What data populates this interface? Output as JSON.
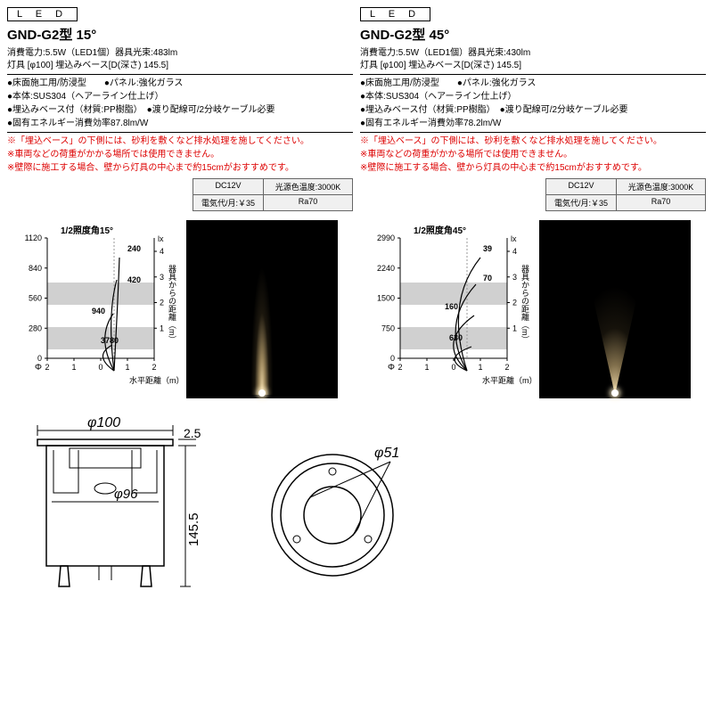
{
  "led_tag": "L E D",
  "left": {
    "model": "GND-G2型 15°",
    "spec1": "消費電力:5.5W（LED1個）器具光束:483lm",
    "spec2": "灯具 [φ100] 埋込みベース[D(深さ) 145.5]",
    "bullets": [
      "●床面施工用/防浸型　　●パネル:強化ガラス",
      "●本体:SUS304（ヘアーライン仕上げ）",
      "●埋込みベース付（材質:PP樹脂）　●渡り配線可/2分岐ケーブル必要",
      "●固有エネルギー消費効率87.8lm/W"
    ],
    "warn": [
      "※「埋込ベース」の下側には、砂利を敷くなど排水処理を施してください。",
      "※車両などの荷重がかかる場所では使用できません。",
      "※壁際に施工する場合、壁から灯具の中心まで約15cmがおすすめです。"
    ],
    "box1": "DC12V",
    "box2": "光源色温度:3000K",
    "box3": "電気代/月:￥35",
    "box4": "Ra70",
    "chart": {
      "title": "1/2照度角15°",
      "y_ticks": [
        "1120",
        "840",
        "560",
        "280",
        "0"
      ],
      "x_ticks": [
        "2",
        "1",
        "0",
        "1",
        "2"
      ],
      "right_ticks": [
        "4",
        "3",
        "2",
        "1"
      ],
      "x_label": "水平距離（m）",
      "right_label": "器具からの距離（m）",
      "lx": "lx",
      "vals": [
        "240",
        "420",
        "940",
        "3780"
      ],
      "bands": [
        [
          50,
          25
        ],
        [
          100,
          25
        ]
      ],
      "curves": [
        "M120,152 Q124,80 126,25",
        "M120,152 Q112,90 123,50",
        "M120,152 Q100,115 119,88",
        "M120,152 Q96,135 118,123"
      ],
      "val_pos": [
        [
          135,
          35
        ],
        [
          135,
          70
        ],
        [
          95,
          105
        ],
        [
          105,
          138
        ]
      ]
    }
  },
  "right": {
    "model": "GND-G2型 45°",
    "spec1": "消費電力:5.5W（LED1個）器具光束:430lm",
    "spec2": "灯具 [φ100] 埋込みベース[D(深さ) 145.5]",
    "bullets": [
      "●床面施工用/防浸型　　●パネル:強化ガラス",
      "●本体:SUS304（ヘアーライン仕上げ）",
      "●埋込みベース付（材質:PP樹脂）　●渡り配線可/2分岐ケーブル必要",
      "●固有エネルギー消費効率78.2lm/W"
    ],
    "warn": [
      "※「埋込ベース」の下側には、砂利を敷くなど排水処理を施してください。",
      "※車両などの荷重がかかる場所では使用できません。",
      "※壁際に施工する場合、壁から灯具の中心まで約15cmがおすすめです。"
    ],
    "box1": "DC12V",
    "box2": "光源色温度:3000K",
    "box3": "電気代/月:￥35",
    "box4": "Ra70",
    "chart": {
      "title": "1/2照度角45°",
      "y_ticks": [
        "2990",
        "2240",
        "1500",
        "750",
        "0"
      ],
      "x_ticks": [
        "2",
        "1",
        "0",
        "1",
        "2"
      ],
      "right_ticks": [
        "4",
        "3",
        "2",
        "1"
      ],
      "x_label": "水平距離（m）",
      "right_label": "器具からの距離（m）",
      "lx": "lx",
      "vals": [
        "39",
        "70",
        "160",
        "630"
      ],
      "bands": [
        [
          50,
          25
        ],
        [
          100,
          25
        ]
      ],
      "curves": [
        "M120,152 Q95,75 135,25",
        "M120,152 Q90,100 130,55",
        "M120,152 Q86,120 128,90",
        "M120,152 Q90,138 125,125"
      ],
      "val_pos": [
        [
          138,
          35
        ],
        [
          138,
          68
        ],
        [
          95,
          100
        ],
        [
          100,
          135
        ]
      ]
    }
  },
  "dims": {
    "phi100": "φ100",
    "h25": "2.5",
    "phi96": "φ96",
    "h1455": "145.5",
    "phi51": "φ51"
  },
  "colors": {
    "grid": "#000",
    "band": "#d0d0d0",
    "warn": "#d00000"
  }
}
